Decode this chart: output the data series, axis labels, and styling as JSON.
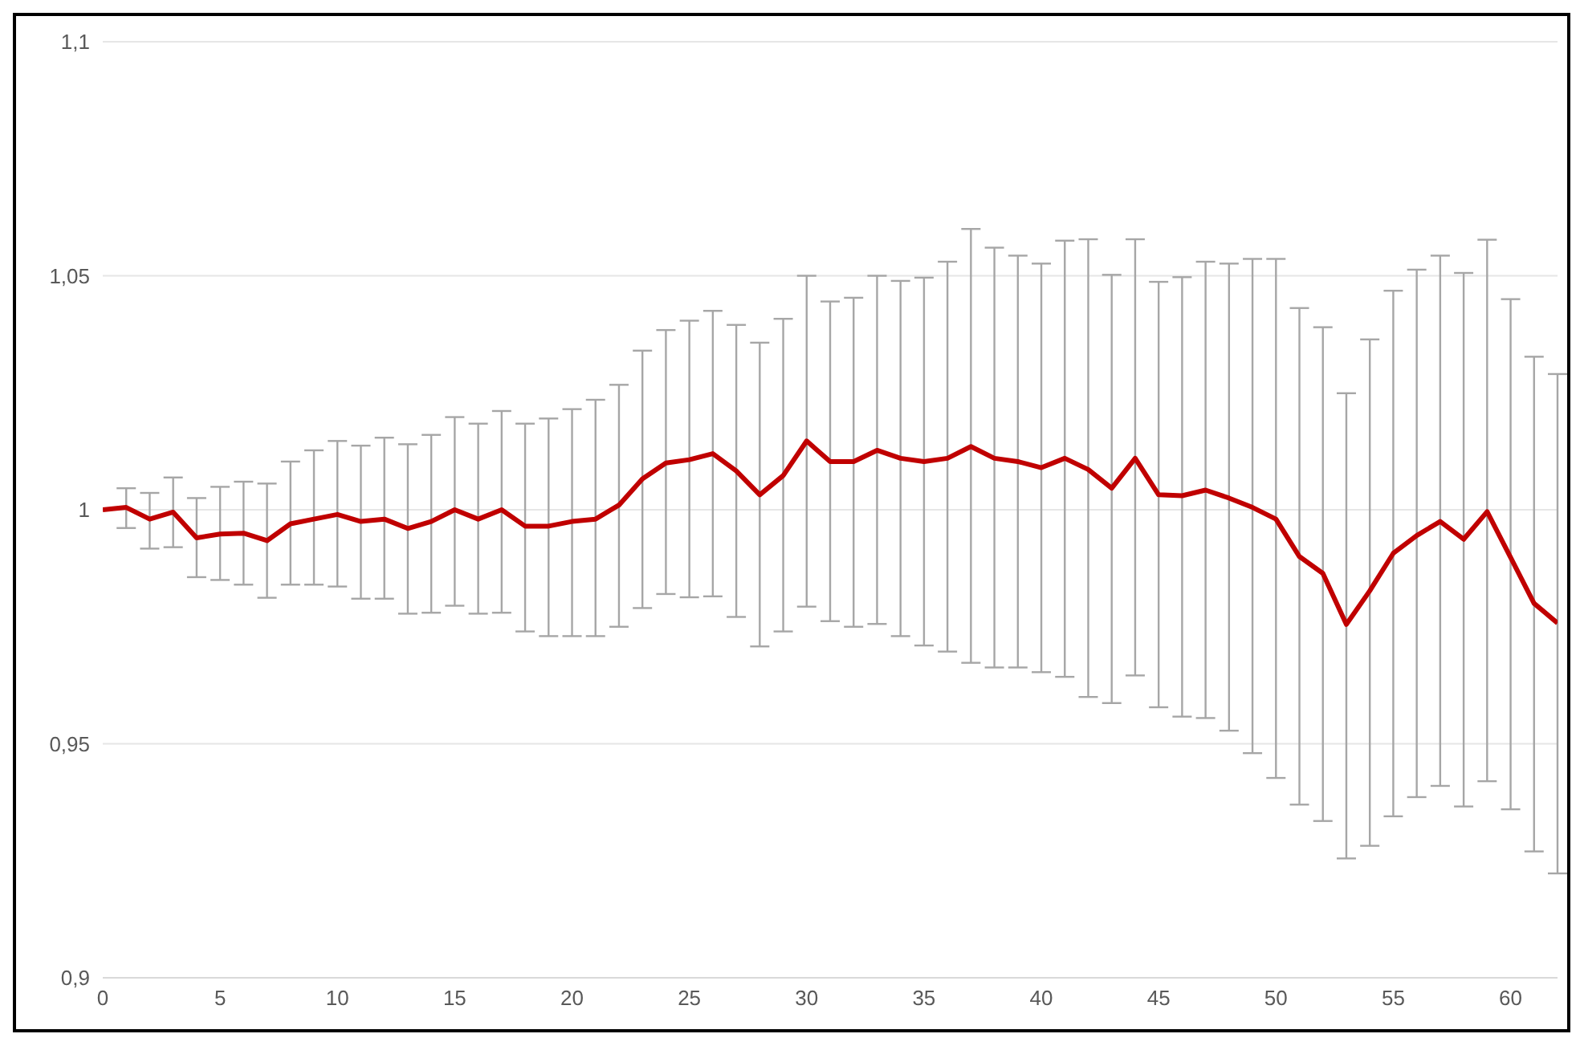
{
  "chart_data": {
    "type": "line",
    "x": [
      0,
      1,
      2,
      3,
      4,
      5,
      6,
      7,
      8,
      9,
      10,
      11,
      12,
      13,
      14,
      15,
      16,
      17,
      18,
      19,
      20,
      21,
      22,
      23,
      24,
      25,
      26,
      27,
      28,
      29,
      30,
      31,
      32,
      33,
      34,
      35,
      36,
      37,
      38,
      39,
      40,
      41,
      42,
      43,
      44,
      45,
      46,
      47,
      48,
      49,
      50,
      51,
      52,
      53,
      54,
      55,
      56,
      57,
      58,
      59,
      60,
      61,
      62
    ],
    "series": [
      {
        "color": "#c00000",
        "values": [
          1.0,
          1.0005,
          0.998,
          0.9995,
          0.994,
          0.9948,
          0.995,
          0.9934,
          0.997,
          0.998,
          0.999,
          0.9975,
          0.998,
          0.996,
          0.9975,
          1.0,
          0.998,
          1.0,
          0.9965,
          0.9965,
          0.9975,
          0.998,
          1.001,
          1.0066,
          1.01,
          1.0107,
          1.012,
          1.0083,
          1.0032,
          1.0073,
          1.0147,
          1.0103,
          1.0103,
          1.0127,
          1.011,
          1.0103,
          1.011,
          1.0135,
          1.011,
          1.0103,
          1.009,
          1.011,
          1.0086,
          1.0046,
          1.011,
          1.0032,
          1.003,
          1.0042,
          1.0025,
          1.0005,
          0.998,
          0.99,
          0.9864,
          0.9755,
          0.9827,
          0.9907,
          0.9945,
          0.9975,
          0.9937,
          0.9996,
          0.9898,
          0.98,
          0.9758
        ],
        "errors": [
          null,
          [
            0.9961,
            1.0046
          ],
          [
            0.9917,
            1.0036
          ],
          [
            0.992,
            1.0069
          ],
          [
            0.9856,
            1.0025
          ],
          [
            0.985,
            1.0049
          ],
          [
            0.984,
            1.006
          ],
          [
            0.9812,
            1.0056
          ],
          [
            0.984,
            1.0103
          ],
          [
            0.984,
            1.0127
          ],
          [
            0.9836,
            1.0147
          ],
          [
            0.981,
            1.0137
          ],
          [
            0.981,
            1.0154
          ],
          [
            0.9778,
            1.014
          ],
          [
            0.978,
            1.016
          ],
          [
            0.9795,
            1.0198
          ],
          [
            0.9778,
            1.0184
          ],
          [
            0.978,
            1.0211
          ],
          [
            0.974,
            1.0184
          ],
          [
            0.973,
            1.0195
          ],
          [
            0.973,
            1.0215
          ],
          [
            0.973,
            1.0235
          ],
          [
            0.975,
            1.0267
          ],
          [
            0.979,
            1.034
          ],
          [
            0.982,
            1.0384
          ],
          [
            0.9813,
            1.0404
          ],
          [
            0.9815,
            1.0425
          ],
          [
            0.9771,
            1.0395
          ],
          [
            0.9708,
            1.0357
          ],
          [
            0.974,
            1.0408
          ],
          [
            0.9793,
            1.05
          ],
          [
            0.9762,
            1.0445
          ],
          [
            0.975,
            1.0453
          ],
          [
            0.9756,
            1.05
          ],
          [
            0.973,
            1.0489
          ],
          [
            0.971,
            1.0496
          ],
          [
            0.9697,
            1.053
          ],
          [
            0.9673,
            1.06
          ],
          [
            0.9663,
            1.056
          ],
          [
            0.9663,
            1.0543
          ],
          [
            0.9653,
            1.0526
          ],
          [
            0.9643,
            1.0575
          ],
          [
            0.96,
            1.0578
          ],
          [
            0.9587,
            1.0502
          ],
          [
            0.9646,
            1.0578
          ],
          [
            0.9578,
            1.0487
          ],
          [
            0.9558,
            1.0497
          ],
          [
            0.9555,
            1.053
          ],
          [
            0.9528,
            1.0526
          ],
          [
            0.948,
            1.0536
          ],
          [
            0.9427,
            1.0536
          ],
          [
            0.937,
            1.0431
          ],
          [
            0.9335,
            1.039
          ],
          [
            0.9255,
            1.0249
          ],
          [
            0.9282,
            1.0364
          ],
          [
            0.9345,
            1.0468
          ],
          [
            0.9386,
            1.0513
          ],
          [
            0.941,
            1.0543
          ],
          [
            0.9366,
            1.0506
          ],
          [
            0.942,
            1.0577
          ],
          [
            0.936,
            1.045
          ],
          [
            0.927,
            1.0327
          ],
          [
            0.9223,
            1.029
          ]
        ]
      }
    ],
    "xlim": [
      0,
      62
    ],
    "xticks": [
      0,
      5,
      10,
      15,
      20,
      25,
      30,
      35,
      40,
      45,
      50,
      55,
      60
    ],
    "ylim": [
      0.9,
      1.1
    ],
    "yticks": [
      {
        "value": 0.9,
        "label": "0,9"
      },
      {
        "value": 0.95,
        "label": "0,95"
      },
      1,
      {
        "value": 1.05,
        "label": "1,05"
      },
      {
        "value": 1.1,
        "label": "1,1"
      }
    ],
    "grid": "y",
    "legend": false,
    "marker": "none",
    "line_style": "solid"
  }
}
